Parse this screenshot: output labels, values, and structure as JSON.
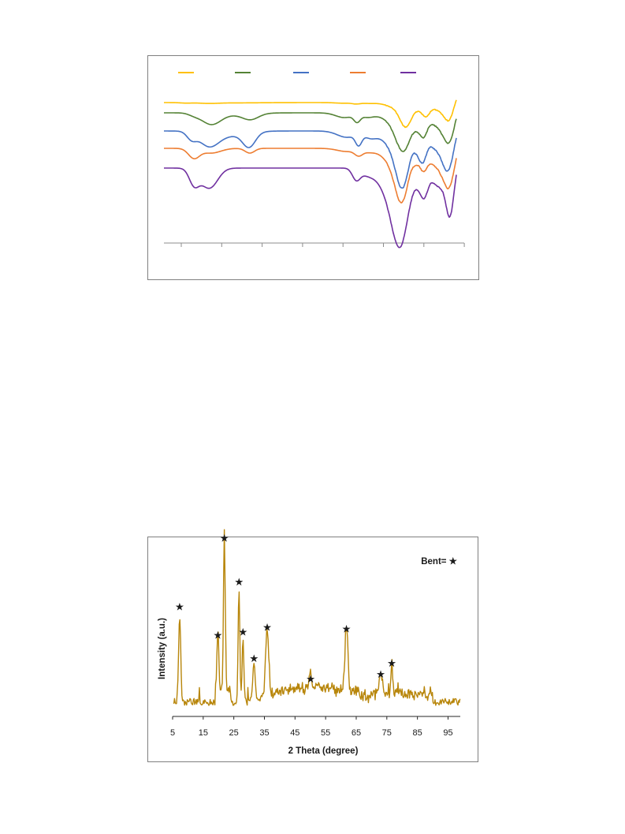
{
  "chart_data": [
    {
      "type": "line",
      "title": "",
      "xlabel": "",
      "ylabel": "",
      "grid": false,
      "legend": {
        "placement": "top",
        "entries": [
          "",
          "",
          "",
          "",
          ""
        ]
      },
      "x_axis": {
        "tick_count": 8,
        "tick_labels": []
      },
      "series": [
        {
          "color": "#ffc000",
          "baseline": 130,
          "dips": [
            [
              236,
              0.6,
              7
            ],
            [
              265,
              0.9,
              12
            ],
            [
              300,
              0.4,
              30
            ],
            [
              436,
              0.8,
              10
            ],
            [
              452,
              1.5,
              5
            ],
            [
              468,
              1.0,
              8
            ],
            [
              515,
              24,
              7
            ],
            [
              508,
              8,
              14
            ],
            [
              530,
              4,
              5
            ],
            [
              540,
              14,
              5
            ],
            [
              555,
              3,
              7
            ],
            [
              570,
              24,
              6
            ],
            [
              560,
              6,
              15
            ]
          ]
        },
        {
          "color": "#548235",
          "baseline": 143,
          "dips": [
            [
              246,
              2.5,
              7
            ],
            [
              268,
              14,
              12
            ],
            [
              300,
              2.5,
              22
            ],
            [
              318,
              7,
              10
            ],
            [
              437,
              6,
              11
            ],
            [
              453,
              9,
              4
            ],
            [
              466,
              5,
              8
            ],
            [
              512,
              36,
              9
            ],
            [
              505,
              14,
              16
            ],
            [
              528,
              6,
              4
            ],
            [
              537,
              26,
              5
            ],
            [
              552,
              7,
              7
            ],
            [
              570,
              36,
              7
            ],
            [
              562,
              10,
              14
            ]
          ]
        },
        {
          "color": "#4472c4",
          "baseline": 166,
          "dips": [
            [
              243,
              9,
              6
            ],
            [
              265,
              17,
              12
            ],
            [
              290,
              6,
              22
            ],
            [
              316,
              18,
              8
            ],
            [
              440,
              8,
              12
            ],
            [
              455,
              14,
              4
            ],
            [
              470,
              8,
              8
            ],
            [
              511,
              52,
              8
            ],
            [
              503,
              24,
              14
            ],
            [
              528,
              9,
              4
            ],
            [
              536,
              34,
              5
            ],
            [
              551,
              10,
              7
            ],
            [
              569,
              44,
              7
            ],
            [
              561,
              14,
              14
            ]
          ]
        },
        {
          "color": "#ed7d31",
          "baseline": 188,
          "dips": [
            [
              246,
              12,
              7
            ],
            [
              268,
              6,
              12
            ],
            [
              317,
              6,
              6
            ],
            [
              440,
              4,
              12
            ],
            [
              455,
              7,
              5
            ],
            [
              468,
              4,
              8
            ],
            [
              510,
              50,
              8
            ],
            [
              502,
              22,
              14
            ],
            [
              527,
              8,
              4
            ],
            [
              537,
              24,
              5
            ],
            [
              552,
              10,
              7
            ],
            [
              570,
              45,
              7
            ],
            [
              561,
              14,
              14
            ]
          ]
        },
        {
          "color": "#7030a0",
          "baseline": 213,
          "dips": [
            [
              246,
              18,
              6
            ],
            [
              267,
              22,
              10
            ],
            [
              256,
              6,
              10
            ],
            [
              452,
              14,
              5
            ],
            [
              465,
              6,
              8
            ],
            [
              508,
              72,
              10
            ],
            [
              498,
              34,
              16
            ],
            [
              530,
              8,
              5
            ],
            [
              538,
              32,
              5
            ],
            [
              554,
              10,
              7
            ],
            [
              571,
              56,
              5
            ],
            [
              563,
              16,
              12
            ]
          ]
        }
      ]
    },
    {
      "type": "line",
      "title": "",
      "xlabel": "2 Theta (degree)",
      "ylabel": "Intensity (a.u.)",
      "xlim": [
        5,
        99
      ],
      "xticks": [
        5,
        15,
        25,
        35,
        45,
        55,
        65,
        75,
        85,
        95
      ],
      "color": "#b8860b",
      "annotation": "Bent= ★",
      "peaks": [
        {
          "x": 7.3,
          "height": 0.56,
          "width": 0.35,
          "marker": "★"
        },
        {
          "x": 19.8,
          "height": 0.38,
          "width": 0.3,
          "marker": "★"
        },
        {
          "x": 21.9,
          "height": 1.0,
          "width": 0.28,
          "marker": "★"
        },
        {
          "x": 26.7,
          "height": 0.72,
          "width": 0.28,
          "marker": "★"
        },
        {
          "x": 28.0,
          "height": 0.4,
          "width": 0.28,
          "marker": "★"
        },
        {
          "x": 31.6,
          "height": 0.23,
          "width": 0.45,
          "marker": "★"
        },
        {
          "x": 35.9,
          "height": 0.43,
          "width": 0.5,
          "marker": "★"
        },
        {
          "x": 50.1,
          "height": 0.1,
          "width": 0.4,
          "marker": "★"
        },
        {
          "x": 61.8,
          "height": 0.42,
          "width": 0.45,
          "marker": "★"
        },
        {
          "x": 73.0,
          "height": 0.13,
          "width": 0.5,
          "marker": "★"
        },
        {
          "x": 76.6,
          "height": 0.2,
          "width": 0.3,
          "marker": "★"
        }
      ]
    }
  ]
}
